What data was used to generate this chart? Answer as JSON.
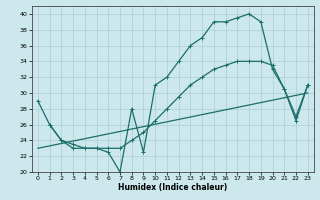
{
  "xlabel": "Humidex (Indice chaleur)",
  "bg_color": "#cce8ec",
  "grid_color": "#aacdd4",
  "line_color": "#1a6e6a",
  "xlim": [
    -0.5,
    23.5
  ],
  "ylim": [
    20,
    41
  ],
  "yticks": [
    20,
    22,
    24,
    26,
    28,
    30,
    32,
    34,
    36,
    38,
    40
  ],
  "xticks": [
    0,
    1,
    2,
    3,
    4,
    5,
    6,
    7,
    8,
    9,
    10,
    11,
    12,
    13,
    14,
    15,
    16,
    17,
    18,
    19,
    20,
    21,
    22,
    23
  ],
  "line1_x": [
    0,
    1,
    2,
    3,
    4,
    5,
    6,
    7,
    8,
    9,
    10,
    11,
    12,
    13,
    14,
    15,
    16,
    17,
    18,
    19,
    20,
    21,
    22,
    23
  ],
  "line1_y": [
    29,
    26,
    24,
    23,
    23,
    23,
    22.5,
    20,
    28,
    22.5,
    31,
    32,
    34,
    36,
    37,
    39,
    39,
    39.5,
    40,
    39,
    33,
    30.5,
    26.5,
    31
  ],
  "line2_x": [
    1,
    2,
    3,
    4,
    5,
    6,
    7,
    8,
    9,
    10,
    11,
    12,
    13,
    14,
    15,
    16,
    17,
    18,
    19,
    20,
    21,
    22,
    23
  ],
  "line2_y": [
    26,
    24,
    23.5,
    23,
    23,
    23,
    23,
    24,
    25,
    26.5,
    28,
    29.5,
    31,
    32,
    33,
    33.5,
    34,
    34,
    34,
    33.5,
    30.5,
    27,
    31
  ],
  "line3_x": [
    0,
    23
  ],
  "line3_y": [
    23,
    30
  ]
}
